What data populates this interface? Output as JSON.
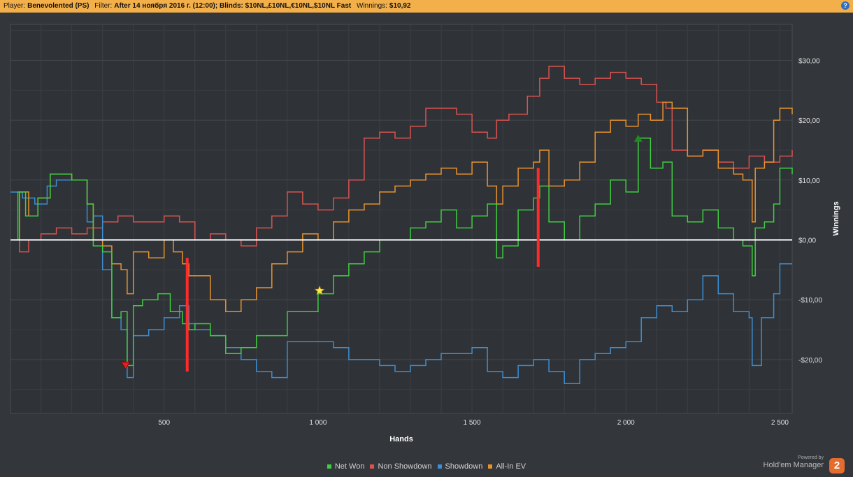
{
  "header": {
    "player_label": "Player:",
    "player_value": "Benevolented (PS)",
    "filter_label": "Filter:",
    "filter_value": "After 14 ноября 2016 г. (12:00); Blinds: $10NL,£10NL,€10NL,$10NL Fast",
    "winnings_label": "Winnings:",
    "winnings_value": "$10,92",
    "help_icon": "?"
  },
  "brand": {
    "powered": "Powered by",
    "name": "Hold'em Manager",
    "logo": "2"
  },
  "colors": {
    "net_won": "#3fce3f",
    "non_showdown": "#d9534f",
    "showdown": "#3b8fd4",
    "allin_ev": "#e8922e",
    "zero": "#ffffff",
    "marker": "#ff2a2a"
  },
  "chart_data": {
    "type": "line",
    "xlabel": "Hands",
    "ylabel": "Winnings",
    "xlim": [
      1,
      2540
    ],
    "ylim": [
      -29,
      36
    ],
    "x_ticks": [
      500,
      1000,
      1500,
      2000,
      2500
    ],
    "x_tick_labels": [
      "500",
      "1 000",
      "1 500",
      "2 000",
      "2 500"
    ],
    "y_ticks": [
      30,
      20,
      10,
      0,
      -10,
      -20
    ],
    "y_tick_labels": [
      "$30,00",
      "$20,00",
      "$10,00",
      "$0,00",
      "-$10,00",
      "-$20,00"
    ],
    "grid": true,
    "legend_position": "bottom",
    "series": [
      {
        "name": "Net Won",
        "x": [
          1,
          25,
          50,
          90,
          130,
          200,
          250,
          270,
          300,
          330,
          360,
          380,
          400,
          430,
          480,
          520,
          560,
          580,
          600,
          650,
          700,
          750,
          800,
          900,
          1000,
          1050,
          1100,
          1150,
          1200,
          1250,
          1300,
          1350,
          1400,
          1450,
          1500,
          1550,
          1580,
          1600,
          1650,
          1700,
          1720,
          1750,
          1800,
          1850,
          1900,
          1950,
          2000,
          2040,
          2080,
          2120,
          2150,
          2200,
          2250,
          2300,
          2350,
          2380,
          2410,
          2420,
          2450,
          2480,
          2500,
          2540
        ],
        "values": [
          0,
          8,
          4,
          7,
          11,
          10,
          6,
          -1,
          -2,
          -13,
          -12,
          -21,
          -11,
          -10,
          -9,
          -12,
          -14,
          -15,
          -14,
          -16,
          -19,
          -18,
          -16,
          -12,
          -9,
          -6,
          -4,
          -2,
          0,
          0,
          2,
          3,
          5,
          2,
          4,
          6,
          -3,
          -1,
          5,
          7,
          9,
          3,
          0,
          4,
          6,
          10,
          8,
          17,
          12,
          13,
          4,
          3,
          5,
          2,
          0,
          -1,
          -6,
          2,
          3,
          6,
          12,
          11
        ]
      },
      {
        "name": "Non Showdown",
        "x": [
          1,
          30,
          60,
          100,
          150,
          200,
          250,
          300,
          350,
          400,
          450,
          500,
          550,
          600,
          650,
          700,
          750,
          800,
          850,
          900,
          950,
          1000,
          1050,
          1100,
          1150,
          1200,
          1250,
          1300,
          1350,
          1400,
          1450,
          1500,
          1550,
          1580,
          1620,
          1680,
          1720,
          1750,
          1800,
          1850,
          1900,
          1950,
          2000,
          2050,
          2100,
          2130,
          2150,
          2200,
          2250,
          2300,
          2350,
          2400,
          2450,
          2500,
          2540
        ],
        "values": [
          0,
          -2,
          0,
          1,
          2,
          1,
          2,
          3,
          4,
          3,
          3,
          4,
          3,
          0,
          1,
          0,
          -1,
          2,
          4,
          8,
          6,
          5,
          7,
          10,
          17,
          18,
          17,
          19,
          22,
          22,
          21,
          18,
          17,
          20,
          21,
          24,
          27,
          29,
          27,
          26,
          27,
          28,
          27,
          26,
          23,
          22,
          15,
          14,
          15,
          13,
          12,
          14,
          13,
          14,
          15
        ]
      },
      {
        "name": "Showdown",
        "x": [
          1,
          40,
          80,
          120,
          150,
          200,
          250,
          270,
          300,
          330,
          360,
          380,
          400,
          450,
          500,
          550,
          580,
          600,
          650,
          700,
          750,
          800,
          850,
          900,
          950,
          1000,
          1050,
          1100,
          1150,
          1200,
          1250,
          1300,
          1350,
          1400,
          1450,
          1500,
          1550,
          1600,
          1650,
          1700,
          1750,
          1800,
          1850,
          1900,
          1950,
          2000,
          2050,
          2100,
          2150,
          2200,
          2250,
          2300,
          2350,
          2400,
          2410,
          2440,
          2480,
          2500,
          2540
        ],
        "values": [
          8,
          7,
          6,
          9,
          10,
          10,
          3,
          4,
          -5,
          -13,
          -15,
          -23,
          -16,
          -15,
          -13,
          -11,
          -14,
          -15,
          -16,
          -18,
          -20,
          -22,
          -23,
          -17,
          -17,
          -17,
          -18,
          -20,
          -20,
          -21,
          -22,
          -21,
          -20,
          -19,
          -19,
          -18,
          -22,
          -23,
          -21,
          -20,
          -22,
          -24,
          -20,
          -19,
          -18,
          -17,
          -13,
          -11,
          -12,
          -10,
          -6,
          -9,
          -12,
          -13,
          -21,
          -13,
          -9,
          -4,
          -4
        ]
      },
      {
        "name": "All-In EV",
        "x": [
          1,
          30,
          60,
          90,
          130,
          200,
          250,
          270,
          300,
          330,
          360,
          380,
          400,
          450,
          500,
          530,
          560,
          580,
          600,
          650,
          700,
          750,
          800,
          850,
          900,
          950,
          1000,
          1050,
          1100,
          1150,
          1200,
          1250,
          1300,
          1350,
          1400,
          1450,
          1500,
          1550,
          1580,
          1600,
          1650,
          1700,
          1720,
          1750,
          1800,
          1850,
          1900,
          1950,
          2000,
          2040,
          2080,
          2120,
          2150,
          2200,
          2250,
          2300,
          2350,
          2380,
          2410,
          2420,
          2450,
          2480,
          2500,
          2540
        ],
        "values": [
          0,
          8,
          4,
          7,
          11,
          10,
          6,
          0,
          -1,
          -4,
          -5,
          -9,
          -2,
          -3,
          0,
          -2,
          -4,
          -6,
          -6,
          -10,
          -12,
          -10,
          -8,
          -4,
          -2,
          1,
          0,
          3,
          5,
          6,
          8,
          9,
          10,
          11,
          12,
          11,
          13,
          9,
          6,
          9,
          12,
          13,
          15,
          9,
          10,
          13,
          18,
          20,
          19,
          21,
          20,
          23,
          22,
          14,
          15,
          12,
          11,
          10,
          3,
          12,
          13,
          20,
          22,
          21
        ]
      }
    ],
    "annotations": [
      {
        "type": "triangle-down",
        "x": 375,
        "y": -21,
        "color": "#e02020"
      },
      {
        "type": "star",
        "x": 1005,
        "y": -8.5,
        "color": "#ffe84a"
      },
      {
        "type": "triangle-up",
        "x": 2040,
        "y": 17,
        "color": "#1f8a1f"
      },
      {
        "type": "vbar",
        "x": 575,
        "y1": -3,
        "y2": -22
      },
      {
        "type": "vbar",
        "x": 1715,
        "y1": 12,
        "y2": -4.5
      }
    ]
  }
}
